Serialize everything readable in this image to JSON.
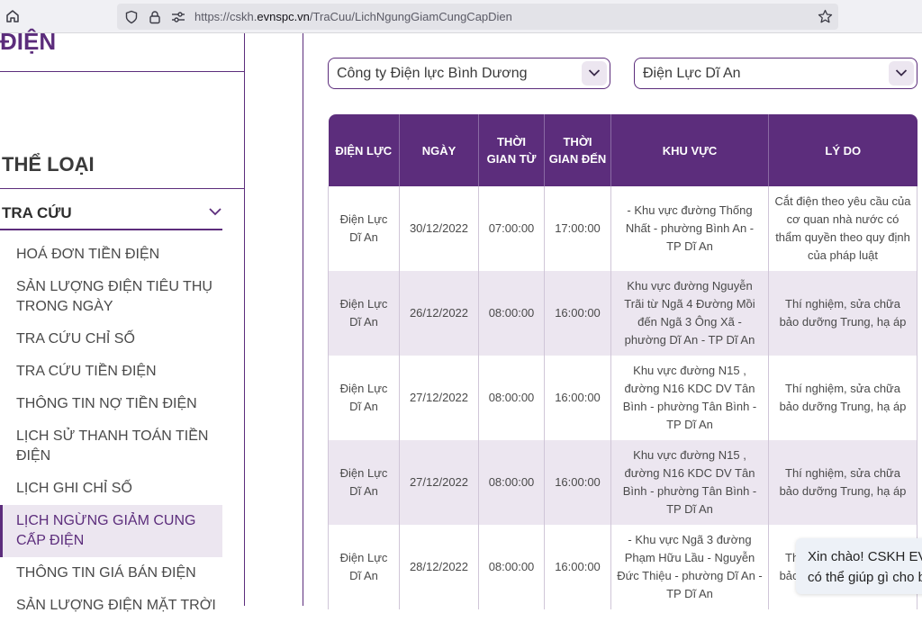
{
  "browser": {
    "url_prefix": "https://cskh.",
    "url_host": "evnspc.vn",
    "url_path": "/TraCuu/LichNgungGiamCungCapDien"
  },
  "sidebar": {
    "brand": "ĐIỆN",
    "category_title": "THỂ LOẠI",
    "section_label": "TRA CỨU",
    "items": [
      {
        "label": "HOÁ ĐƠN TIỀN ĐIỆN"
      },
      {
        "label": "SẢN LƯỢNG ĐIỆN TIÊU THỤ TRONG NGÀY"
      },
      {
        "label": "TRA CỨU CHỈ SỐ"
      },
      {
        "label": "TRA CỨU TIỀN ĐIỆN"
      },
      {
        "label": "THÔNG TIN NỢ TIỀN ĐIỆN"
      },
      {
        "label": "LỊCH SỬ THANH TOÁN TIỀN ĐIỆN"
      },
      {
        "label": "LỊCH GHI CHỈ SỐ"
      },
      {
        "label": "LỊCH NGỪNG GIẢM CUNG CẤP ĐIỆN"
      },
      {
        "label": "THÔNG TIN GIÁ BÁN ĐIỆN"
      },
      {
        "label": "SẢN LƯỢNG ĐIỆN MẶT TRỜI"
      }
    ],
    "active_index": 7
  },
  "filters": {
    "company": "Công ty Điện lực Bình Dương",
    "branch": "Điện Lực Dĩ An"
  },
  "table": {
    "headers": [
      "ĐIỆN LỰC",
      "NGÀY",
      "THỜI GIAN TỪ",
      "THỜI GIAN ĐẾN",
      "KHU VỰC",
      "LÝ DO"
    ],
    "rows": [
      [
        "Điện Lực Dĩ An",
        "30/12/2022",
        "07:00:00",
        "17:00:00",
        "- Khu vực đường Thống Nhất - phường Bình An - TP Dĩ An",
        "Cắt điện theo yêu cầu của cơ quan nhà nước có thẩm quyền theo quy định của pháp luật"
      ],
      [
        "Điện Lực Dĩ An",
        "26/12/2022",
        "08:00:00",
        "16:00:00",
        "Khu vực đường Nguyễn Trãi từ Ngã 4 Đường Mồi đến Ngã 3 Ông Xã - phường Dĩ An - TP Dĩ An",
        "Thí nghiệm, sửa chữa bảo dưỡng Trung, hạ áp"
      ],
      [
        "Điện Lực Dĩ An",
        "27/12/2022",
        "08:00:00",
        "16:00:00",
        "Khu vực đường N15 , đường N16 KDC DV Tân Bình - phường Tân Bình - TP Dĩ An",
        "Thí nghiệm, sửa chữa bảo dưỡng Trung, hạ áp"
      ],
      [
        "Điện Lực Dĩ An",
        "27/12/2022",
        "08:00:00",
        "16:00:00",
        "Khu vực đường N15 , đường N16 KDC DV Tân Bình - phường Tân Bình - TP Dĩ An",
        "Thí nghiệm, sửa chữa bảo dưỡng Trung, hạ áp"
      ],
      [
        "Điện Lực Dĩ An",
        "28/12/2022",
        "08:00:00",
        "16:00:00",
        "- Khu vực Ngã 3 đường Phạm Hữu Lầu - Nguyễn Đức Thiệu - phường Dĩ An - TP Dĩ An",
        "Thí nghiệm, sửa chữa bảo dưỡng Trung, hạ áp"
      ]
    ]
  },
  "chat": {
    "line1": "Xin chào! CSKH EV",
    "line2": "có thể giúp gì cho b"
  },
  "colors": {
    "brand": "#5c2d7c",
    "row_alt": "#ece6f0"
  }
}
